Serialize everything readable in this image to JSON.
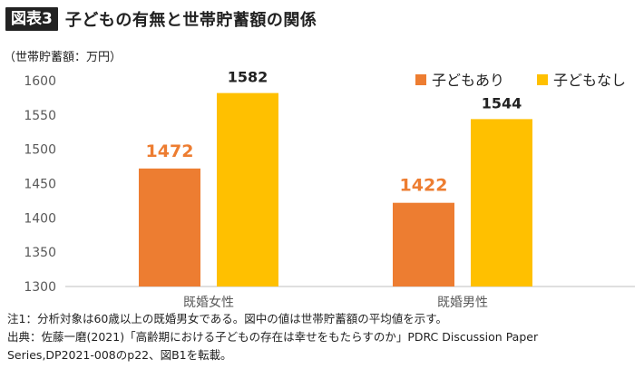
{
  "header": {
    "figure_label": "図表3",
    "title": "子どもの有無と世帯貯蓄額の関係"
  },
  "chart_data": {
    "type": "bar",
    "ylabel": "（世帯貯蓄額：万円）",
    "categories": [
      "既婚女性",
      "既婚男性"
    ],
    "series": [
      {
        "name": "子どもあり",
        "values": [
          1472,
          1422
        ],
        "color": "#ED7D31"
      },
      {
        "name": "子どもなし",
        "values": [
          1582,
          1544
        ],
        "color": "#FFC000"
      }
    ],
    "ylim": [
      1300,
      1600
    ],
    "yticks": [
      "1600",
      "1550",
      "1500",
      "1450",
      "1400",
      "1350",
      "1300"
    ],
    "data_labels": true,
    "legend_position": "top-right",
    "grid": false
  },
  "notes": {
    "line1": "注1：分析対象は60歳以上の既婚男女である。図中の値は世帯貯蓄額の平均値を示す。",
    "line2": "出典：佐藤一磨(2021)「高齢期における子どもの存在は幸せをもたらすのか」PDRC Discussion Paper",
    "line3": "Series,DP2021-008のp22、図B1を転載。"
  }
}
